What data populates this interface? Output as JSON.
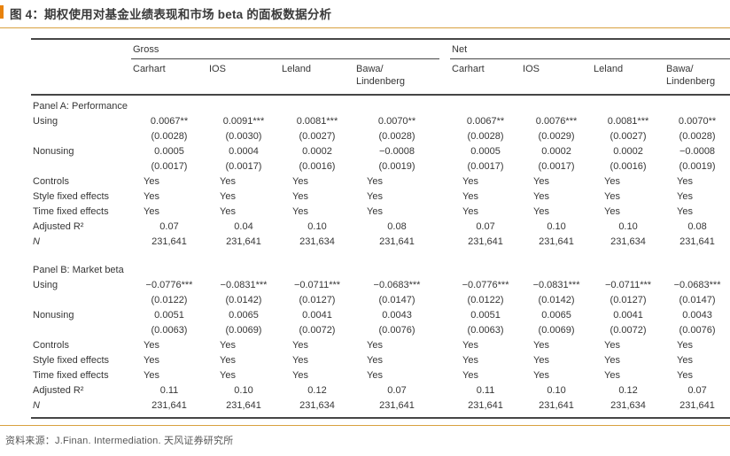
{
  "colors": {
    "accent_bar": "#E8820C",
    "orange_rule": "#D9A13F",
    "table_rule": "#464646",
    "title_text": "#3A3A3A",
    "table_text": "#363636",
    "footer_text": "#575757"
  },
  "title": "图 4：期权使用对基金业绩表现和市场 beta 的面板数据分析",
  "footer": {
    "source_label": "资料来源：",
    "source_text": "J.Finan. Intermediation. 天风证券研究所"
  },
  "table": {
    "groups": [
      {
        "label": "Gross"
      },
      {
        "label": "Net"
      }
    ],
    "columns": [
      "Carhart",
      "IOS",
      "Leland",
      "Bawa/\nLindenberg",
      "Carhart",
      "IOS",
      "Leland",
      "Bawa/\nLindenberg"
    ],
    "panels": [
      {
        "title": "Panel A: Performance",
        "rows": [
          {
            "label": "Using",
            "type": "num",
            "values": [
              "0.0067**",
              "0.0091***",
              "0.0081***",
              "0.0070**",
              "0.0067**",
              "0.0076***",
              "0.0081***",
              "0.0070**"
            ]
          },
          {
            "label": "",
            "type": "num",
            "values": [
              "(0.0028)",
              "(0.0030)",
              "(0.0027)",
              "(0.0028)",
              "(0.0028)",
              "(0.0029)",
              "(0.0027)",
              "(0.0028)"
            ]
          },
          {
            "label": "Nonusing",
            "type": "num",
            "values": [
              "0.0005",
              "0.0004",
              "0.0002",
              "−0.0008",
              "0.0005",
              "0.0002",
              "0.0002",
              "−0.0008"
            ]
          },
          {
            "label": "",
            "type": "num",
            "values": [
              "(0.0017)",
              "(0.0017)",
              "(0.0016)",
              "(0.0019)",
              "(0.0017)",
              "(0.0017)",
              "(0.0016)",
              "(0.0019)"
            ]
          },
          {
            "label": "Controls",
            "type": "text",
            "values": [
              "Yes",
              "Yes",
              "Yes",
              "Yes",
              "Yes",
              "Yes",
              "Yes",
              "Yes"
            ]
          },
          {
            "label": "Style fixed effects",
            "type": "text",
            "values": [
              "Yes",
              "Yes",
              "Yes",
              "Yes",
              "Yes",
              "Yes",
              "Yes",
              "Yes"
            ]
          },
          {
            "label": "Time fixed effects",
            "type": "text",
            "values": [
              "Yes",
              "Yes",
              "Yes",
              "Yes",
              "Yes",
              "Yes",
              "Yes",
              "Yes"
            ]
          },
          {
            "label": "Adjusted R²",
            "type": "num",
            "values": [
              "0.07",
              "0.04",
              "0.10",
              "0.08",
              "0.07",
              "0.10",
              "0.10",
              "0.08"
            ]
          },
          {
            "label": "N",
            "italic": true,
            "type": "num",
            "values": [
              "231,641",
              "231,641",
              "231,634",
              "231,641",
              "231,641",
              "231,641",
              "231,634",
              "231,641"
            ]
          }
        ]
      },
      {
        "title": "Panel B: Market beta",
        "rows": [
          {
            "label": "Using",
            "type": "num",
            "values": [
              "−0.0776***",
              "−0.0831***",
              "−0.0711***",
              "−0.0683***",
              "−0.0776***",
              "−0.0831***",
              "−0.0711***",
              "−0.0683***"
            ]
          },
          {
            "label": "",
            "type": "num",
            "values": [
              "(0.0122)",
              "(0.0142)",
              "(0.0127)",
              "(0.0147)",
              "(0.0122)",
              "(0.0142)",
              "(0.0127)",
              "(0.0147)"
            ]
          },
          {
            "label": "Nonusing",
            "type": "num",
            "values": [
              "0.0051",
              "0.0065",
              "0.0041",
              "0.0043",
              "0.0051",
              "0.0065",
              "0.0041",
              "0.0043"
            ]
          },
          {
            "label": "",
            "type": "num",
            "values": [
              "(0.0063)",
              "(0.0069)",
              "(0.0072)",
              "(0.0076)",
              "(0.0063)",
              "(0.0069)",
              "(0.0072)",
              "(0.0076)"
            ]
          },
          {
            "label": "Controls",
            "type": "text",
            "values": [
              "Yes",
              "Yes",
              "Yes",
              "Yes",
              "Yes",
              "Yes",
              "Yes",
              "Yes"
            ]
          },
          {
            "label": "Style fixed effects",
            "type": "text",
            "values": [
              "Yes",
              "Yes",
              "Yes",
              "Yes",
              "Yes",
              "Yes",
              "Yes",
              "Yes"
            ]
          },
          {
            "label": "Time fixed effects",
            "type": "text",
            "values": [
              "Yes",
              "Yes",
              "Yes",
              "Yes",
              "Yes",
              "Yes",
              "Yes",
              "Yes"
            ]
          },
          {
            "label": "Adjusted R²",
            "type": "num",
            "values": [
              "0.11",
              "0.10",
              "0.12",
              "0.07",
              "0.11",
              "0.10",
              "0.12",
              "0.07"
            ]
          },
          {
            "label": "N",
            "italic": true,
            "type": "num",
            "values": [
              "231,641",
              "231,641",
              "231,634",
              "231,641",
              "231,641",
              "231,641",
              "231,634",
              "231,641"
            ]
          }
        ]
      }
    ]
  }
}
